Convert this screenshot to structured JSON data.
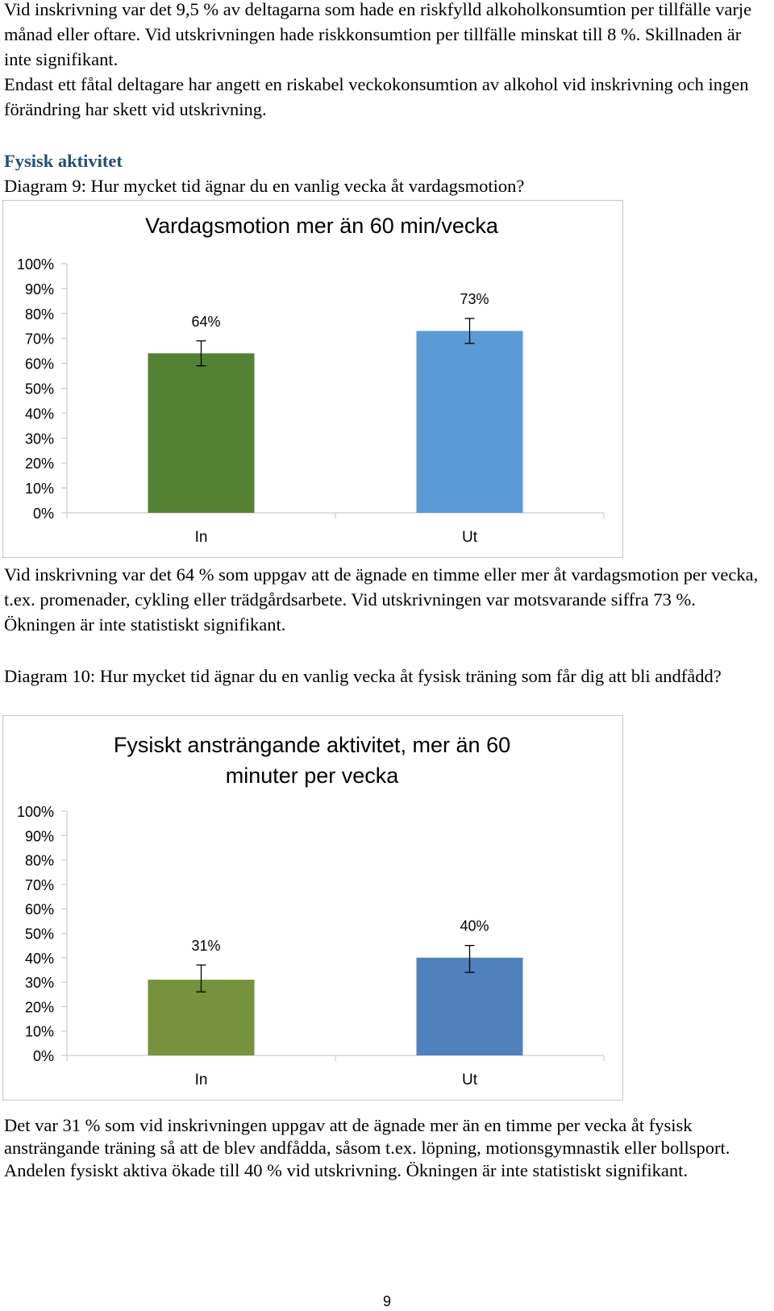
{
  "paragraphs": {
    "p1": "Vid inskrivning var det 9,5 % av deltagarna som hade en riskfylld alkoholkonsumtion per tillfälle varje månad eller oftare. Vid utskrivningen hade riskkonsumtion per tillfälle minskat till 8 %. Skillnaden är inte signifikant.",
    "p2": "Endast ett fåtal deltagare har angett en riskabel veckokonsumtion av alkohol vid inskrivning och ingen förändring har skett vid utskrivning.",
    "heading": "Fysisk aktivitet",
    "caption1": "Diagram 9: Hur mycket tid ägnar du en vanlig vecka åt vardagsmotion?",
    "p3": "Vid inskrivning var det 64 % som uppgav att de ägnade en timme eller mer åt vardagsmotion per vecka, t.ex. promenader, cykling eller trädgårdsarbete. Vid utskrivningen var motsvarande siffra 73 %. Ökningen är inte statistiskt signifikant.",
    "caption2": "Diagram 10: Hur mycket tid ägnar du en vanlig vecka åt fysisk träning som får dig att bli andfådd?",
    "p4": "Det var 31 % som vid inskrivningen uppgav att de ägnade mer än en timme per vecka åt fysisk ansträngande träning så att de blev andfådda, såsom t.ex. löpning, motionsgymnastik eller bollsport. Andelen fysiskt aktiva ökade till 40 % vid utskrivning. Ökningen är inte statistiskt signifikant."
  },
  "page_number": "9",
  "chart_data": [
    {
      "type": "bar",
      "title": "Vardagsmotion mer än 60 min/vecka",
      "categories": [
        "In",
        "Ut"
      ],
      "values": [
        64,
        73
      ],
      "value_labels": [
        "64%",
        "73%"
      ],
      "error_low": [
        59,
        68
      ],
      "error_high": [
        69,
        78
      ],
      "colors": [
        "#548235",
        "#5b9bd5"
      ],
      "ylim": [
        0,
        100
      ],
      "y_ticks": [
        "0%",
        "10%",
        "20%",
        "30%",
        "40%",
        "50%",
        "60%",
        "70%",
        "80%",
        "90%",
        "100%"
      ],
      "grid": false,
      "xlabel": "",
      "ylabel": ""
    },
    {
      "type": "bar",
      "title": [
        "Fysiskt ansträngande aktivitet, mer än 60",
        "minuter per vecka"
      ],
      "categories": [
        "In",
        "Ut"
      ],
      "values": [
        31,
        40
      ],
      "value_labels": [
        "31%",
        "40%"
      ],
      "error_low": [
        26,
        34
      ],
      "error_high": [
        37,
        45
      ],
      "colors": [
        "#76923c",
        "#4f81bd"
      ],
      "ylim": [
        0,
        100
      ],
      "y_ticks": [
        "0%",
        "10%",
        "20%",
        "30%",
        "40%",
        "50%",
        "60%",
        "70%",
        "80%",
        "90%",
        "100%"
      ],
      "grid": false,
      "xlabel": "",
      "ylabel": ""
    }
  ]
}
